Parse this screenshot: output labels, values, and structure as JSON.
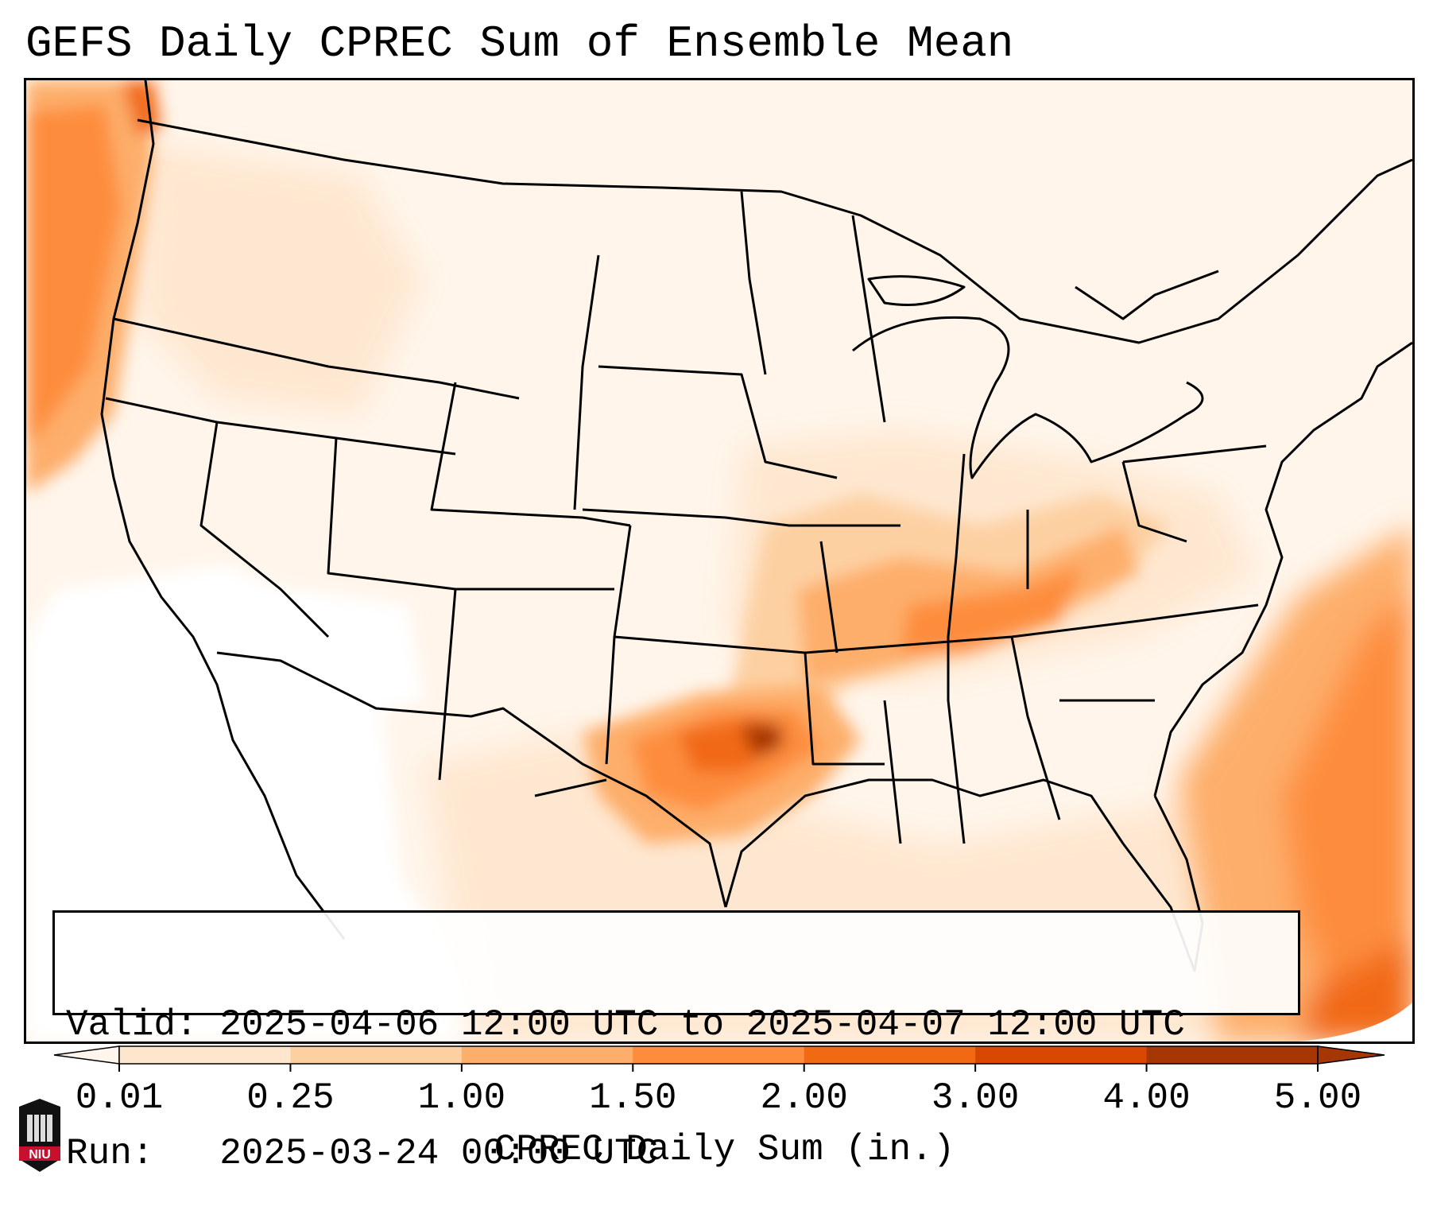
{
  "title": "GEFS Daily CPREC Sum of Ensemble Mean",
  "info": {
    "valid_line": "Valid: 2025-04-06 12:00 UTC to 2025-04-07 12:00 UTC",
    "run_line": "Run:   2025-03-24 00:00 UTC"
  },
  "colorbar": {
    "label": "CPREC Daily Sum (in.)",
    "ticks": [
      "0.01",
      "0.25",
      "1.00",
      "1.50",
      "2.00",
      "3.00",
      "4.00",
      "5.00"
    ],
    "colors": [
      "#fff5eb",
      "#fee6ce",
      "#fdd0a2",
      "#fdae6b",
      "#fd8d3c",
      "#f16913",
      "#d94801",
      "#a63603"
    ],
    "extend": "both"
  },
  "logo": {
    "name": "NIU"
  },
  "map": {
    "projection": "Lambert conformal (CONUS)",
    "ocean_color": "#ffffff",
    "state_line_color": "#000000"
  }
}
